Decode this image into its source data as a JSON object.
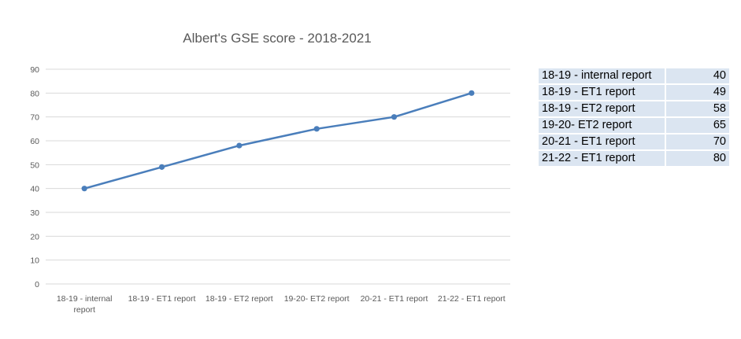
{
  "chart_data": {
    "type": "line",
    "title": "Albert's GSE score - 2018-2021",
    "categories": [
      "18-19 - internal report",
      "18-19 - ET1 report",
      "18-19 - ET2 report",
      "19-20- ET2 report",
      "20-21 - ET1 report",
      "21-22 - ET1 report"
    ],
    "category_label_lines": [
      [
        "18-19 - internal",
        "report"
      ],
      [
        "18-19 - ET1 report"
      ],
      [
        "18-19 - ET2 report"
      ],
      [
        "19-20- ET2 report"
      ],
      [
        "20-21 - ET1 report"
      ],
      [
        "21-22 - ET1 report"
      ]
    ],
    "series": [
      {
        "values": [
          40,
          49,
          58,
          65,
          70,
          80
        ],
        "color": "#4a7ebb"
      }
    ],
    "ylim": [
      0,
      90
    ],
    "yticks": [
      0,
      10,
      20,
      30,
      40,
      50,
      60,
      70,
      80,
      90
    ],
    "grid": true,
    "legend": "none"
  },
  "table": {
    "rows": [
      {
        "label": "18-19 - internal report",
        "value": "40"
      },
      {
        "label": "18-19 - ET1 report",
        "value": "49"
      },
      {
        "label": "18-19 - ET2 report",
        "value": "58"
      },
      {
        "label": "19-20- ET2 report",
        "value": "65"
      },
      {
        "label": "20-21 - ET1 report",
        "value": "70"
      },
      {
        "label": "21-22 - ET1 report",
        "value": "80"
      }
    ]
  }
}
